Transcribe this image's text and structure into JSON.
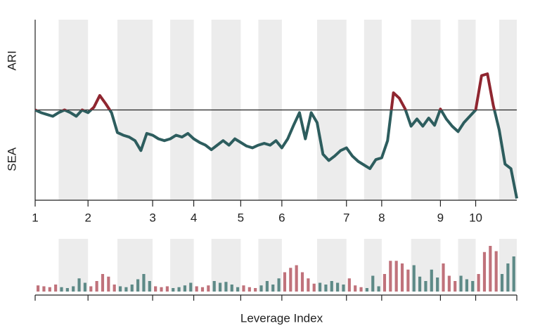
{
  "chart_data": [
    {
      "type": "line",
      "ylabel_top": "ARI",
      "ylabel_bottom": "SEA",
      "x": [
        0,
        1,
        2,
        3,
        4,
        5,
        6,
        7,
        8,
        9,
        10,
        11,
        12,
        13,
        14,
        15,
        16,
        17,
        18,
        19,
        20,
        21,
        22,
        23,
        24,
        25,
        26,
        27,
        28,
        29,
        30,
        31,
        32,
        33,
        34,
        35,
        36,
        37,
        38,
        39,
        40,
        41,
        42,
        43,
        44,
        45,
        46,
        47,
        48,
        49,
        50,
        51,
        52,
        53,
        54,
        55,
        56,
        57,
        58,
        59,
        60,
        61,
        62,
        63,
        64,
        65,
        66,
        67,
        68,
        69,
        70,
        71,
        72,
        73,
        74,
        75,
        76,
        77,
        78,
        79,
        80,
        81,
        82
      ],
      "series": [
        {
          "values": [
            0,
            -0.03,
            -0.05,
            -0.07,
            -0.03,
            0,
            -0.03,
            -0.07,
            0,
            -0.03,
            0.03,
            0.16,
            0.07,
            -0.03,
            -0.25,
            -0.28,
            -0.3,
            -0.34,
            -0.45,
            -0.26,
            -0.28,
            -0.32,
            -0.34,
            -0.32,
            -0.28,
            -0.3,
            -0.26,
            -0.32,
            -0.36,
            -0.39,
            -0.44,
            -0.39,
            -0.34,
            -0.39,
            -0.32,
            -0.36,
            -0.4,
            -0.42,
            -0.39,
            -0.37,
            -0.39,
            -0.34,
            -0.42,
            -0.32,
            -0.17,
            -0.03,
            -0.32,
            -0.03,
            -0.14,
            -0.49,
            -0.56,
            -0.51,
            -0.45,
            -0.42,
            -0.51,
            -0.57,
            -0.61,
            -0.65,
            -0.55,
            -0.53,
            -0.34,
            0.19,
            0.13,
            0.01,
            -0.18,
            -0.1,
            -0.18,
            -0.09,
            -0.17,
            0.01,
            -0.1,
            -0.18,
            -0.24,
            -0.14,
            -0.07,
            0,
            0.38,
            0.4,
            0.05,
            -0.22,
            -0.6,
            -0.65,
            -0.98
          ]
        }
      ],
      "color_above": "#8f2630",
      "color_below": "#2d5d5e",
      "xlim": [
        0,
        82
      ],
      "ylim": [
        -1,
        1
      ],
      "xticks": [
        {
          "value": 0,
          "label": "1"
        },
        {
          "value": 9,
          "label": "2"
        },
        {
          "value": 20,
          "label": "3"
        },
        {
          "value": 27,
          "label": "4"
        },
        {
          "value": 35,
          "label": "5"
        },
        {
          "value": 42,
          "label": "6"
        },
        {
          "value": 53,
          "label": "7"
        },
        {
          "value": 59,
          "label": "8"
        },
        {
          "value": 69,
          "label": "9"
        },
        {
          "value": 75,
          "label": "10"
        }
      ],
      "bands": [
        [
          4,
          9
        ],
        [
          14,
          20
        ],
        [
          23,
          27
        ],
        [
          30,
          35
        ],
        [
          38,
          42
        ],
        [
          48,
          53
        ],
        [
          56,
          59
        ],
        [
          64,
          69
        ],
        [
          72,
          75
        ],
        [
          79,
          82
        ]
      ],
      "band_color": "#ececec"
    },
    {
      "type": "bar",
      "xlabel": "Leverage Index",
      "x": [
        0,
        1,
        2,
        3,
        4,
        5,
        6,
        7,
        8,
        9,
        10,
        11,
        12,
        13,
        14,
        15,
        16,
        17,
        18,
        19,
        20,
        21,
        22,
        23,
        24,
        25,
        26,
        27,
        28,
        29,
        30,
        31,
        32,
        33,
        34,
        35,
        36,
        37,
        38,
        39,
        40,
        41,
        42,
        43,
        44,
        45,
        46,
        47,
        48,
        49,
        50,
        51,
        52,
        53,
        54,
        55,
        56,
        57,
        58,
        59,
        60,
        61,
        62,
        63,
        64,
        65,
        66,
        67,
        68,
        69,
        70,
        71,
        72,
        73,
        74,
        75,
        76,
        77,
        78,
        79,
        80,
        81
      ],
      "values": [
        7,
        6,
        5,
        8,
        5,
        4,
        6,
        15,
        10,
        6,
        12,
        20,
        17,
        8,
        6,
        5,
        8,
        14,
        20,
        12,
        6,
        5,
        6,
        4,
        5,
        7,
        10,
        6,
        5,
        7,
        12,
        10,
        11,
        8,
        5,
        7,
        5,
        4,
        7,
        12,
        8,
        15,
        22,
        27,
        30,
        22,
        15,
        9,
        10,
        8,
        12,
        10,
        8,
        15,
        7,
        5,
        4,
        18,
        6,
        20,
        35,
        35,
        32,
        25,
        30,
        17,
        12,
        25,
        16,
        32,
        18,
        12,
        18,
        14,
        12,
        20,
        45,
        52,
        46,
        20,
        32,
        40
      ],
      "color_in_band": "#5e8a87",
      "color_out_band": "#c0727b",
      "xlim": [
        0,
        82
      ],
      "ylim": [
        0,
        60
      ],
      "xticks": [
        0,
        9,
        20,
        27,
        35,
        42,
        53,
        59,
        69,
        75,
        82
      ],
      "bands": [
        [
          4,
          9
        ],
        [
          14,
          20
        ],
        [
          23,
          27
        ],
        [
          30,
          35
        ],
        [
          38,
          42
        ],
        [
          48,
          53
        ],
        [
          56,
          59
        ],
        [
          64,
          69
        ],
        [
          72,
          75
        ],
        [
          79,
          82
        ]
      ],
      "band_color": "#ececec"
    }
  ]
}
